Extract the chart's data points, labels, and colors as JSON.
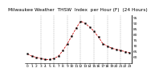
{
  "title": "Milwaukee Weather  THSW  Index  per Hour (F)  (24 Hours)",
  "hours": [
    0,
    1,
    2,
    3,
    4,
    5,
    6,
    7,
    8,
    9,
    10,
    11,
    12,
    13,
    14,
    15,
    16,
    17,
    18,
    19,
    20,
    21,
    22,
    23
  ],
  "values": [
    63,
    61,
    60,
    59,
    58,
    58,
    59,
    61,
    66,
    72,
    79,
    86,
    92,
    90,
    87,
    83,
    78,
    72,
    70,
    68,
    67,
    66,
    65,
    64
  ],
  "ylim": [
    55,
    97
  ],
  "yticks": [
    60,
    65,
    70,
    75,
    80,
    85,
    90,
    95
  ],
  "ytick_labels": [
    "60",
    "65",
    "70",
    "75",
    "80",
    "85",
    "90",
    "95"
  ],
  "xtick_positions": [
    0,
    1,
    2,
    3,
    4,
    5,
    6,
    7,
    8,
    9,
    10,
    11,
    12,
    13,
    14,
    15,
    16,
    17,
    18,
    19,
    20,
    21,
    22,
    23
  ],
  "xtick_labels": [
    "0",
    "1",
    "2",
    "3",
    "4",
    "5",
    "6",
    "7",
    "8",
    "9",
    "10",
    "11",
    "12",
    "13",
    "14",
    "15",
    "16",
    "17",
    "18",
    "19",
    "20",
    "21",
    "22",
    "23"
  ],
  "vgrid_positions": [
    3,
    6,
    9,
    12,
    15,
    18,
    21
  ],
  "line_color": "#cc0000",
  "marker_color": "#000000",
  "bg_color": "#ffffff",
  "grid_color": "#888888",
  "title_color": "#000000",
  "title_fontsize": 4.2,
  "tick_fontsize": 3.2,
  "linewidth": 0.55,
  "markersize": 1.2
}
